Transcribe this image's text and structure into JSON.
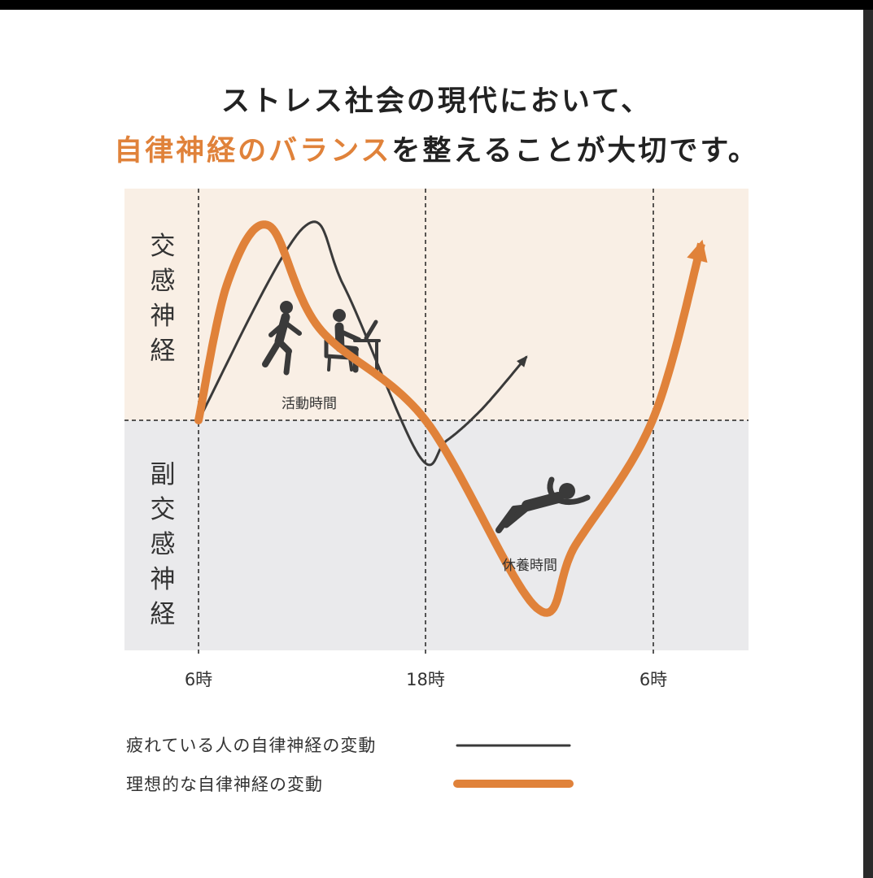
{
  "title": {
    "line1": "ストレス社会の現代において、",
    "line2_highlight": "自律神経のバランス",
    "line2_rest": "を整えることが大切です。"
  },
  "colors": {
    "orange": "#e0823a",
    "dark": "#3a3a3a",
    "top_band": "#f9efe5",
    "bottom_band": "#eaeaec"
  },
  "chart_data": {
    "type": "line",
    "x_ticks": [
      "6時",
      "18時",
      "6時"
    ],
    "y_regions": {
      "upper": "交感神経",
      "lower": "副交感神経"
    },
    "annotations": {
      "active": "活動時間",
      "rest": "休養時間"
    },
    "icons": [
      "running-person-icon",
      "desk-worker-icon",
      "resting-person-icon"
    ],
    "series": [
      {
        "name": "疲れている人の自律神経の変動",
        "color": "#3a3a3a",
        "points": [
          [
            0,
            0
          ],
          [
            0.46,
            0.83
          ],
          [
            0.64,
            0.58
          ],
          [
            0.97,
            -0.15
          ],
          [
            1.09,
            -0.09
          ],
          [
            1.25,
            0.05
          ],
          [
            1.45,
            0.28
          ]
        ]
      },
      {
        "name": "理想的な自律神経の変動",
        "color": "#e0823a",
        "points": [
          [
            0,
            0
          ],
          [
            0.13,
            0.6
          ],
          [
            0.31,
            0.84
          ],
          [
            0.53,
            0.4
          ],
          [
            1.0,
            0.0
          ],
          [
            1.49,
            -0.81
          ],
          [
            1.66,
            -0.54
          ],
          [
            2.0,
            0.0
          ],
          [
            2.22,
            0.78
          ]
        ]
      }
    ]
  },
  "legend": [
    {
      "label": "疲れている人の自律神経の変動"
    },
    {
      "label": "理想的な自律神経の変動"
    }
  ]
}
